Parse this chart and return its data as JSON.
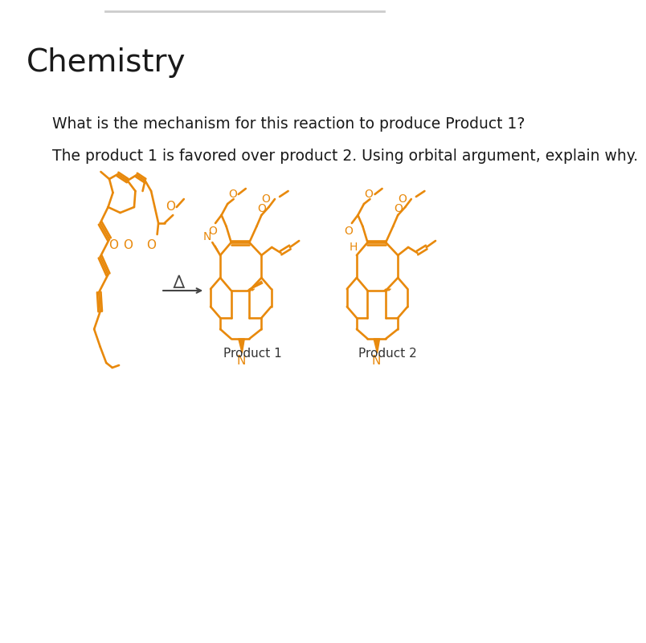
{
  "title": "Chemistry",
  "question1": "What is the mechanism for this reaction to produce Product 1?",
  "question2": "The product 1 is favored over product 2. Using orbital argument, explain why.",
  "product1_label": "Product 1",
  "product2_label": "Product 2",
  "structure_color": "#E8890C",
  "background_color": "#ffffff",
  "top_bar_color": "#cccccc",
  "text_color": "#1a1a1a",
  "title_fontsize": 28,
  "question_fontsize": 13.5,
  "label_fontsize": 11
}
